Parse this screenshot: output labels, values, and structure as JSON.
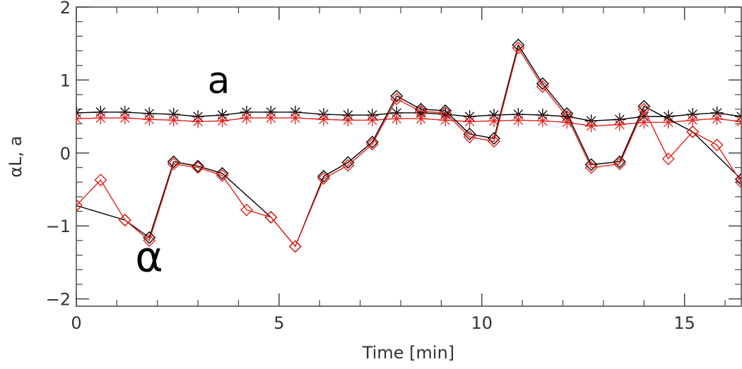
{
  "chart_data": {
    "type": "line",
    "xlabel": "Time [min]",
    "ylabel": "αL, a",
    "xlim": [
      0,
      16.4
    ],
    "ylim": [
      -2.1,
      2.0
    ],
    "x_ticks": [
      0,
      5,
      10,
      15
    ],
    "y_ticks": [
      -2,
      -1,
      0,
      1,
      2
    ],
    "x_tick_labels": [
      "0",
      "5",
      "10",
      "15"
    ],
    "y_tick_labels": [
      "−2",
      "−1",
      "0",
      "1",
      "2"
    ],
    "grid": false,
    "annotations": [
      {
        "text": "a",
        "x": 11.6,
        "y": 0.82
      },
      {
        "text": "α",
        "x": 10.95,
        "y": -1.62
      }
    ],
    "series": [
      {
        "color": "#000000",
        "marker": "asterisk",
        "x": [
          0,
          0.6,
          1.2,
          1.8,
          2.4,
          3.0,
          3.6,
          4.2,
          4.8,
          5.4,
          6.1,
          6.7,
          7.3,
          7.9,
          8.5,
          9.1,
          9.7,
          10.3,
          10.9,
          11.5,
          12.1,
          12.7,
          13.4,
          14.0,
          14.6,
          15.2,
          15.8,
          16.4
        ],
        "y": [
          0.55,
          0.56,
          0.56,
          0.54,
          0.53,
          0.5,
          0.52,
          0.56,
          0.56,
          0.56,
          0.53,
          0.52,
          0.52,
          0.55,
          0.55,
          0.53,
          0.5,
          0.52,
          0.53,
          0.52,
          0.5,
          0.44,
          0.46,
          0.5,
          0.5,
          0.53,
          0.55,
          0.5
        ]
      },
      {
        "color": "#e8201a",
        "marker": "asterisk",
        "x": [
          0,
          0.6,
          1.2,
          1.8,
          2.4,
          3.0,
          3.6,
          4.2,
          4.8,
          5.4,
          6.1,
          6.7,
          7.3,
          7.9,
          8.5,
          9.1,
          9.7,
          10.3,
          10.9,
          11.5,
          12.1,
          12.7,
          13.4,
          14.0,
          14.6,
          15.2,
          15.8,
          16.4
        ],
        "y": [
          0.47,
          0.48,
          0.48,
          0.46,
          0.45,
          0.43,
          0.44,
          0.48,
          0.48,
          0.48,
          0.46,
          0.45,
          0.45,
          0.47,
          0.47,
          0.45,
          0.43,
          0.44,
          0.45,
          0.44,
          0.42,
          0.37,
          0.39,
          0.42,
          0.42,
          0.45,
          0.47,
          0.43
        ]
      },
      {
        "color": "#000000",
        "marker": "diamond",
        "x": [
          0,
          1.2,
          1.8,
          2.4,
          3.0,
          3.6,
          4.8,
          5.4,
          6.1,
          6.7,
          7.3,
          7.9,
          8.5,
          9.1,
          9.7,
          10.3,
          10.9,
          11.5,
          12.1,
          12.7,
          13.4,
          14.0,
          15.2,
          16.4
        ],
        "y": [
          -0.72,
          -0.92,
          -1.16,
          -0.12,
          -0.18,
          -0.28,
          -0.88,
          -1.28,
          -0.32,
          -0.13,
          0.15,
          0.78,
          0.6,
          0.58,
          0.26,
          0.2,
          1.48,
          0.95,
          0.54,
          -0.16,
          -0.12,
          0.64,
          0.29,
          -0.36
        ]
      },
      {
        "color": "#e8201a",
        "marker": "diamond",
        "x": [
          0,
          0.6,
          1.2,
          1.8,
          2.4,
          3.0,
          3.6,
          4.2,
          4.8,
          5.4,
          6.1,
          6.7,
          7.3,
          7.9,
          8.5,
          9.1,
          9.7,
          10.3,
          10.9,
          11.5,
          12.1,
          12.7,
          13.4,
          14.0,
          14.6,
          15.2,
          15.8,
          16.4
        ],
        "y": [
          -0.72,
          -0.37,
          -0.92,
          -1.2,
          -0.15,
          -0.2,
          -0.31,
          -0.78,
          -0.88,
          -1.28,
          -0.35,
          -0.17,
          0.12,
          0.74,
          0.57,
          0.55,
          0.22,
          0.16,
          1.44,
          0.91,
          0.5,
          -0.2,
          -0.15,
          0.6,
          -0.08,
          0.29,
          0.11,
          -0.4
        ]
      }
    ]
  }
}
